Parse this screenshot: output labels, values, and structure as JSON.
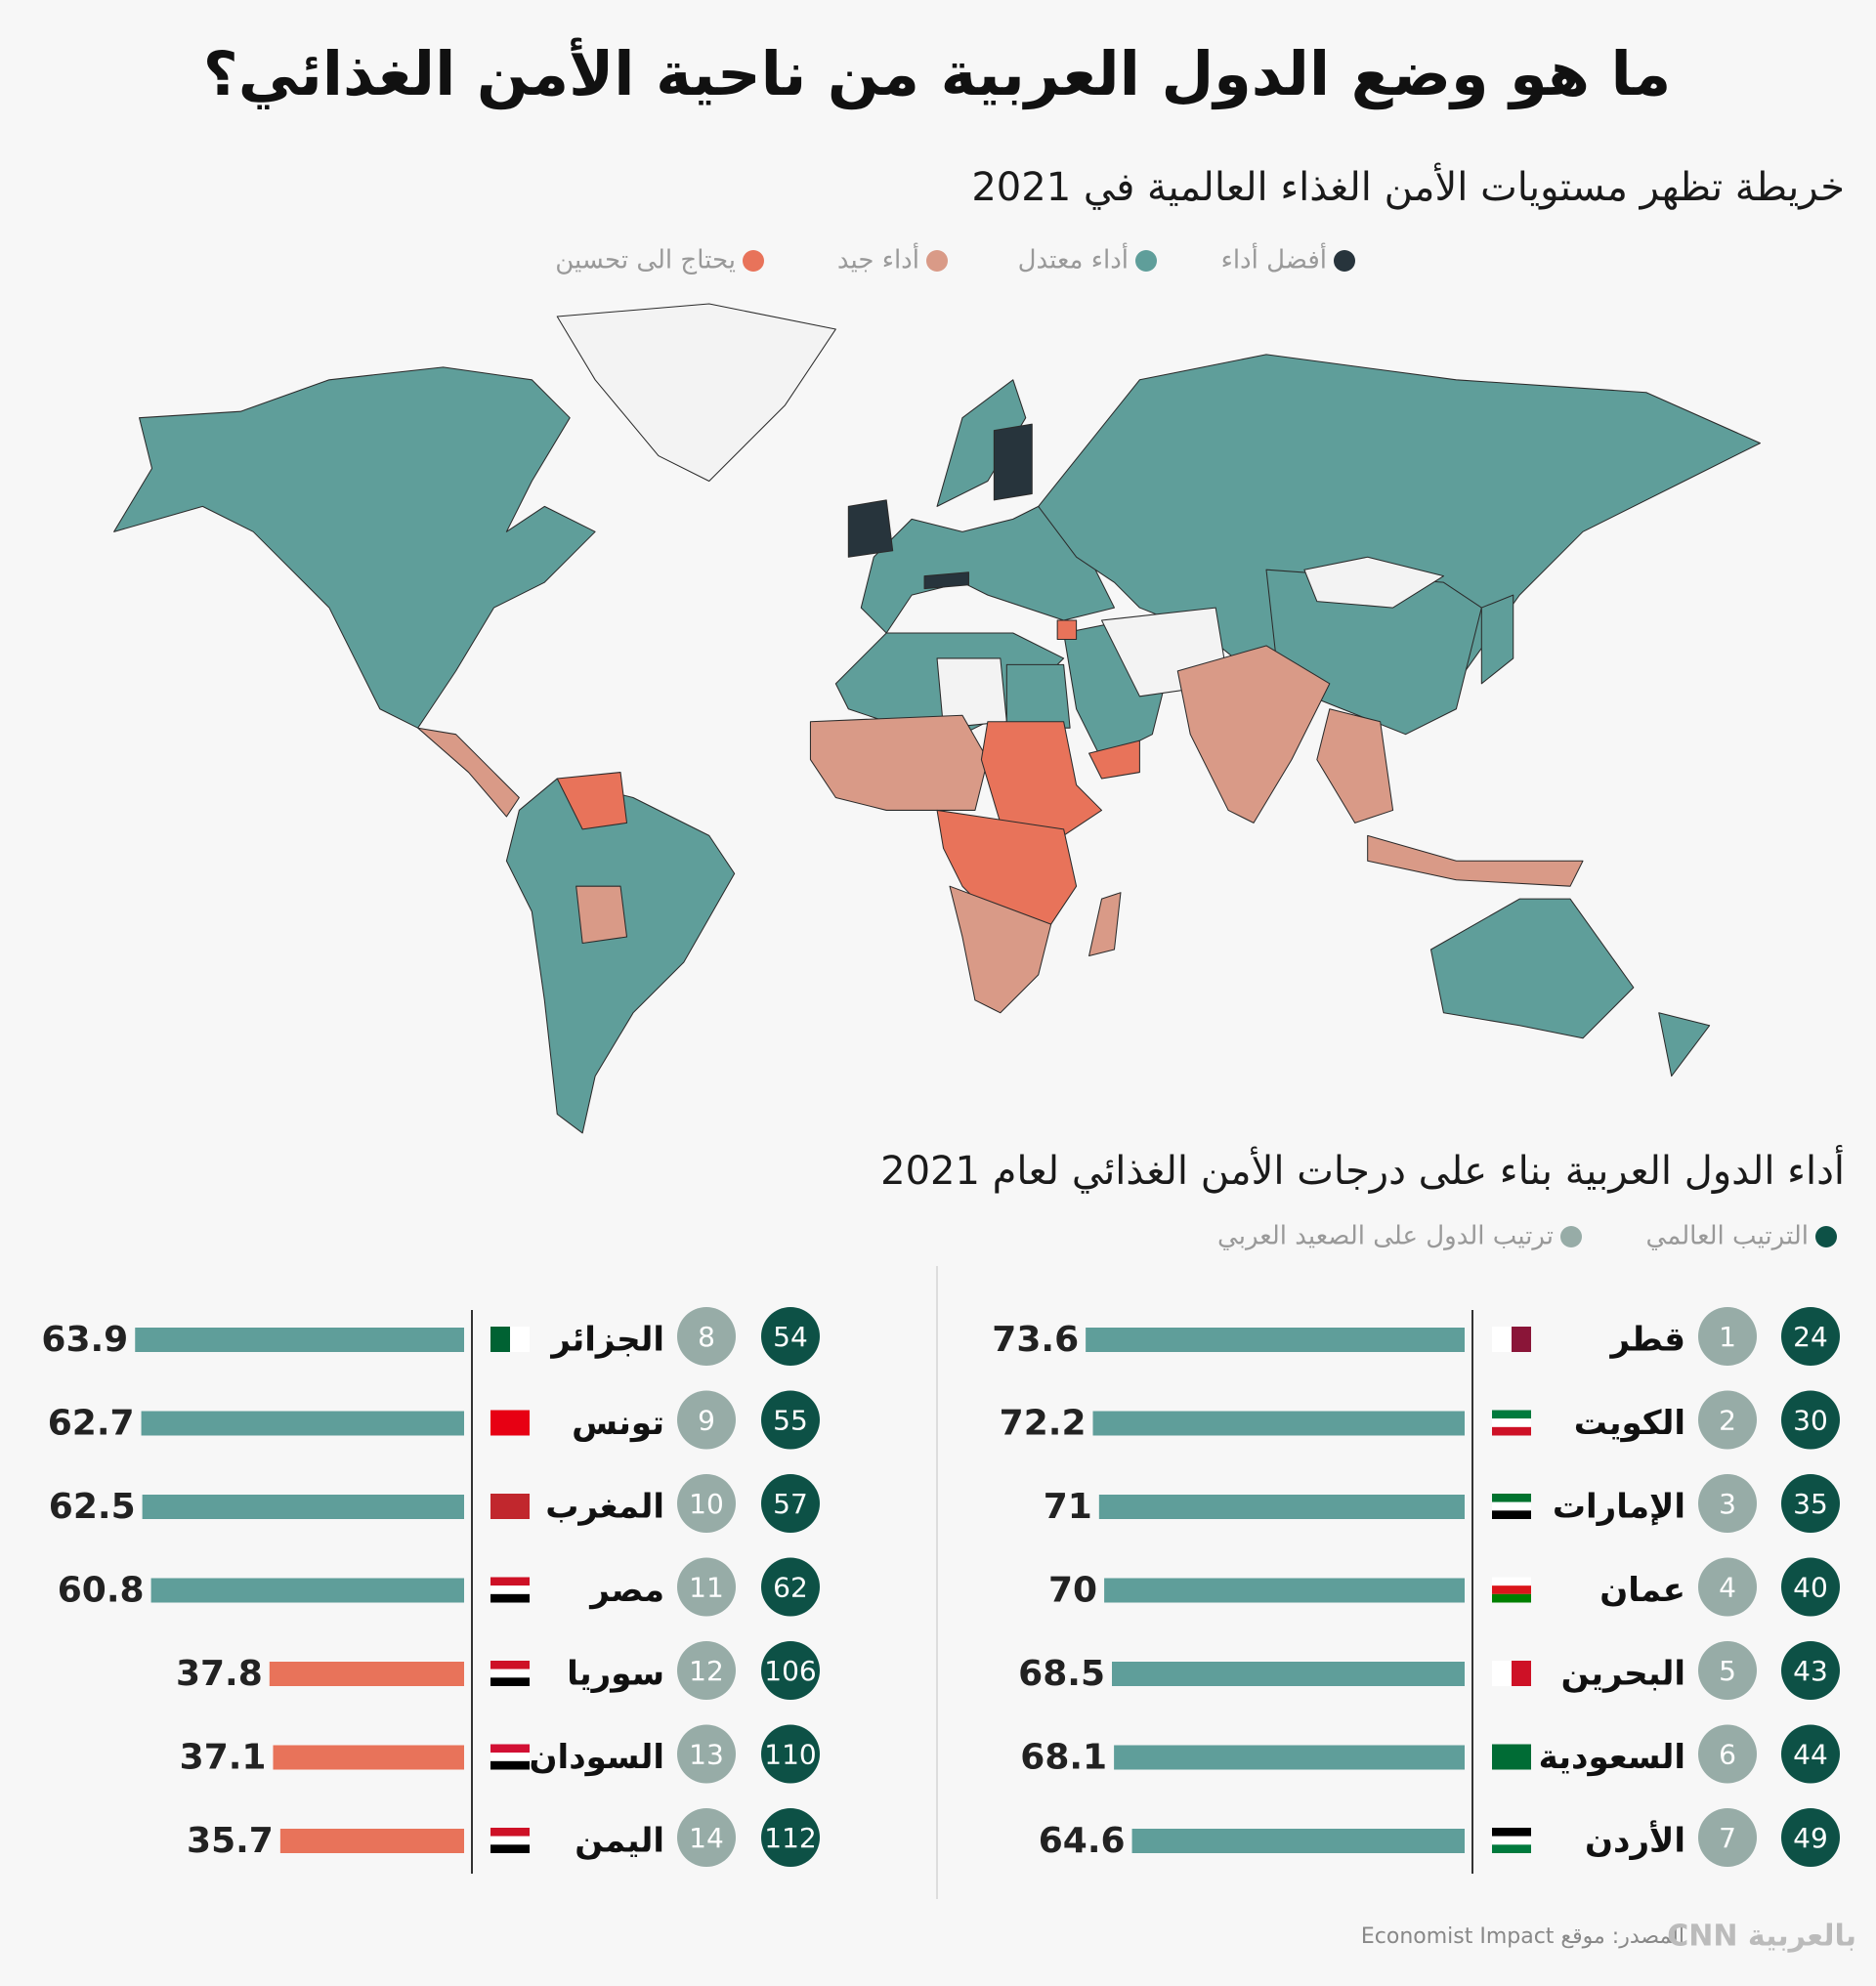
{
  "title": "ما هو وضع الدول العربية من ناحية الأمن الغذائي؟",
  "map": {
    "subtitle": "خريطة تظهر مستويات الأمن الغذاء العالمية في 2021",
    "legend": [
      {
        "label": "أفضل أداء",
        "color": "#27343c"
      },
      {
        "label": "أداء معتدل",
        "color": "#5f9e9a"
      },
      {
        "label": "أداء جيد",
        "color": "#d99a87"
      },
      {
        "label": "يحتاج الى تحسين",
        "color": "#e8735a"
      }
    ]
  },
  "chart_data": {
    "type": "bar",
    "title": "أداء الدول العربية بناء على درجات الأمن الغذائي لعام 2021",
    "legend": [
      {
        "label": "الترتيب العالمي",
        "color": "#0d5146"
      },
      {
        "label": "ترتيب الدول على الصعيد العربي",
        "color": "#97aca7"
      }
    ],
    "categories": [
      "قطر",
      "الكويت",
      "الإمارات",
      "عمان",
      "البحرين",
      "السعودية",
      "الأردن",
      "الجزائر",
      "تونس",
      "المغرب",
      "مصر",
      "سوريا",
      "السودان",
      "اليمن"
    ],
    "values": [
      73.6,
      72.2,
      71,
      70,
      68.5,
      68.1,
      64.6,
      63.9,
      62.7,
      62.5,
      60.8,
      37.8,
      37.1,
      35.7
    ],
    "world_rank": [
      24,
      30,
      35,
      40,
      43,
      44,
      49,
      54,
      55,
      57,
      62,
      106,
      110,
      112
    ],
    "arab_rank": [
      1,
      2,
      3,
      4,
      5,
      6,
      7,
      8,
      9,
      10,
      11,
      12,
      13,
      14
    ],
    "colors": [
      "#5f9e9a",
      "#5f9e9a",
      "#5f9e9a",
      "#5f9e9a",
      "#5f9e9a",
      "#5f9e9a",
      "#5f9e9a",
      "#5f9e9a",
      "#5f9e9a",
      "#5f9e9a",
      "#5f9e9a",
      "#e8735a",
      "#e8735a",
      "#e8735a"
    ]
  },
  "source": "المصدر: موقع Economist Impact",
  "logo": "CNN بالعربية"
}
